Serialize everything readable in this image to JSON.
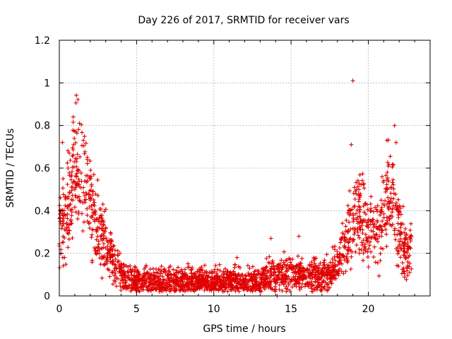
{
  "chart_data": {
    "type": "scatter",
    "title": "Day 226 of 2017, SRMTID for receiver vars",
    "xlabel": "GPS time / hours",
    "ylabel": "SRMTID / TECUs",
    "xlim": [
      0,
      24
    ],
    "ylim": [
      0,
      1.2
    ],
    "x_ticks": [
      0,
      5,
      10,
      15,
      20
    ],
    "y_ticks": [
      0,
      0.2,
      0.4,
      0.6,
      0.8,
      1,
      1.2
    ],
    "x_tick_labels": [
      "0",
      "5",
      "10",
      "15",
      "20"
    ],
    "y_tick_labels": [
      "0",
      "0.2",
      "0.4",
      "0.6",
      "0.8",
      "1",
      "1.2"
    ],
    "grid": true,
    "marker": "plus",
    "series": [
      {
        "name": "SRMTID",
        "color": "#e00000",
        "profile_x": [
          0,
          0.5,
          1.0,
          1.4,
          2.0,
          2.5,
          3.0,
          3.5,
          4.0,
          5.0,
          6.0,
          7.0,
          8.0,
          9.0,
          10.0,
          11.0,
          12.0,
          13.0,
          13.5,
          14.0,
          14.5,
          15.0,
          15.5,
          16.0,
          17.0,
          17.5,
          18.0,
          18.5,
          19.0,
          19.5,
          20.0,
          20.5,
          21.0,
          21.5,
          22.0,
          22.5,
          22.8
        ],
        "profile_y": [
          0.3,
          0.4,
          0.58,
          0.55,
          0.42,
          0.33,
          0.25,
          0.15,
          0.09,
          0.07,
          0.065,
          0.065,
          0.07,
          0.075,
          0.07,
          0.07,
          0.06,
          0.07,
          0.09,
          0.1,
          0.11,
          0.11,
          0.1,
          0.09,
          0.09,
          0.11,
          0.15,
          0.25,
          0.35,
          0.4,
          0.3,
          0.3,
          0.4,
          0.5,
          0.3,
          0.2,
          0.22
        ],
        "count": 2300,
        "outliers": [
          {
            "x": 19.0,
            "y": 1.01
          },
          {
            "x": 0.9,
            "y": 0.84
          },
          {
            "x": 21.7,
            "y": 0.8
          },
          {
            "x": 1.3,
            "y": 0.81
          },
          {
            "x": 0.2,
            "y": 0.72
          },
          {
            "x": 18.9,
            "y": 0.71
          },
          {
            "x": 21.2,
            "y": 0.73
          },
          {
            "x": 21.8,
            "y": 0.72
          },
          {
            "x": 15.5,
            "y": 0.28
          },
          {
            "x": 13.7,
            "y": 0.27
          },
          {
            "x": 11.5,
            "y": 0.18
          },
          {
            "x": 14.1,
            "y": 0.0
          }
        ]
      }
    ]
  }
}
